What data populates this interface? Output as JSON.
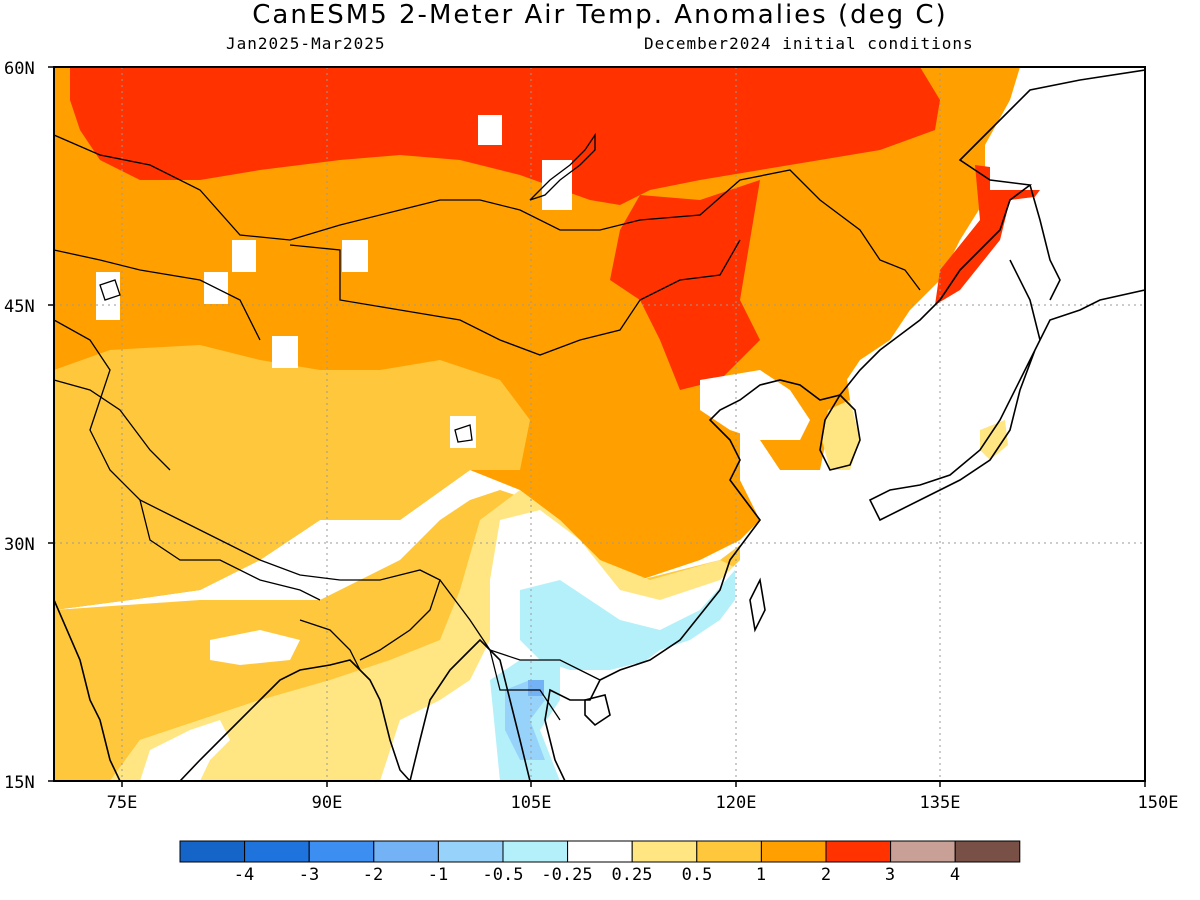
{
  "header": {
    "title": "CanESM5 2-Meter Air Temp. Anomalies (deg C)",
    "period": "Jan2025-Mar2025",
    "init": "December2024 initial conditions"
  },
  "axes": {
    "lat_labels": [
      "60N",
      "45N",
      "30N",
      "15N"
    ],
    "lon_labels": [
      "75E",
      "90E",
      "105E",
      "120E",
      "135E",
      "150E"
    ]
  },
  "legend": {
    "colors": [
      "#1565c8",
      "#1e73dc",
      "#3c8ef0",
      "#73b2f5",
      "#96d2fa",
      "#b4f0fa",
      "#ffffff",
      "#ffe682",
      "#ffc83c",
      "#ffa000",
      "#ff3200",
      "#c8a096",
      "#785046"
    ],
    "labels": [
      "-4",
      "-3",
      "-2",
      "-1",
      "-0.5",
      "-0.25",
      "0.25",
      "0.5",
      "1",
      "2",
      "3",
      "4"
    ]
  },
  "map": {
    "lat_range": [
      15,
      60
    ],
    "lon_range": [
      70,
      150
    ],
    "colors": {
      "gt2": "#ffa000",
      "gt3": "#ff3200",
      "1to2": "#ffc83c",
      "05to1": "#ffe682",
      "neutral": "#ffffff",
      "m05": "#b4f0fa",
      "m1": "#96d2fa",
      "m2": "#73b2f5"
    }
  }
}
